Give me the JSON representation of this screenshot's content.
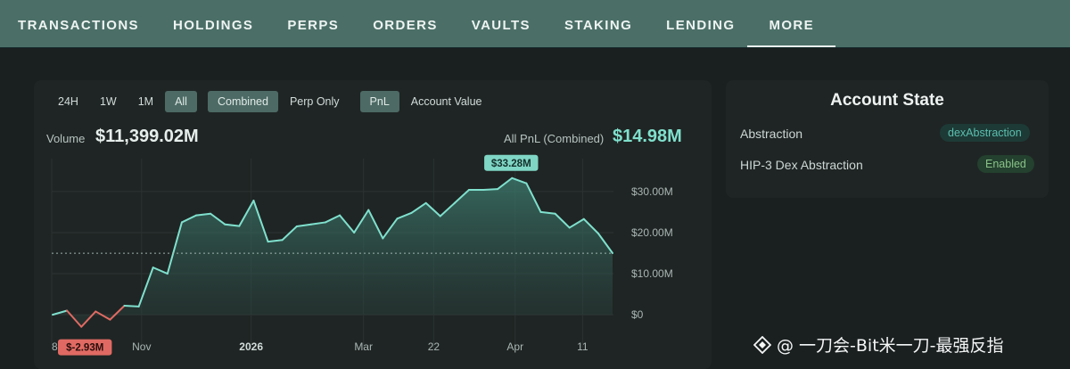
{
  "nav": {
    "tabs": [
      {
        "label": "TRANSACTIONS"
      },
      {
        "label": "HOLDINGS"
      },
      {
        "label": "PERPS"
      },
      {
        "label": "ORDERS"
      },
      {
        "label": "VAULTS"
      },
      {
        "label": "STAKING"
      },
      {
        "label": "LENDING"
      },
      {
        "label": "MORE"
      }
    ],
    "active": "MORE"
  },
  "controls": {
    "ranges": [
      "24H",
      "1W",
      "1M",
      "All"
    ],
    "range_selected": "All",
    "modes": [
      "Combined",
      "Perp Only"
    ],
    "mode_selected": "Combined",
    "metrics": [
      "PnL",
      "Account Value"
    ],
    "metric_selected": "PnL"
  },
  "summary": {
    "volume_label": "Volume",
    "volume_value": "$11,399.02M",
    "pnl_label": "All PnL (Combined)",
    "pnl_value": "$14.98M"
  },
  "account_state": {
    "title": "Account State",
    "rows": [
      {
        "label": "Abstraction",
        "value": "dexAbstraction"
      },
      {
        "label": "HIP-3 Dex Abstraction",
        "value": "Enabled"
      }
    ]
  },
  "watermark": {
    "text": "@ 一刀会-Bit米一刀-最强反指"
  },
  "colors": {
    "accent": "#7fe0cd",
    "negative": "#e06a63",
    "nav_bg": "#4b6f67",
    "panel_bg": "#1f2524"
  },
  "chart_data": {
    "type": "area",
    "series": [
      {
        "values": [
          0.0,
          1.0,
          -2.93,
          0.8,
          -1.2,
          2.2,
          2.0,
          11.5,
          10.0,
          22.5,
          24.2,
          24.6,
          22.0,
          21.6,
          27.8,
          17.8,
          18.2,
          21.5,
          22.0,
          22.5,
          24.2,
          20.0,
          25.5,
          18.6,
          23.4,
          24.8,
          27.2,
          24.0,
          27.2,
          30.4,
          30.4,
          30.6,
          33.28,
          32.0,
          25.0,
          24.6,
          21.2,
          23.3,
          19.8,
          15.0
        ]
      }
    ],
    "x_ticks": [
      "8",
      "Nov",
      "2026",
      "Mar",
      "22",
      "Apr",
      "11"
    ],
    "y_ticks": [
      "$0",
      "$10.00M",
      "$20.00M",
      "$30.00M"
    ],
    "ylim": [
      -8,
      38
    ],
    "reference_line": 14.98,
    "annotations": [
      {
        "label": "$33.28M",
        "value": 33.28,
        "kind": "max"
      },
      {
        "label": "$-2.93M",
        "value": -2.93,
        "kind": "min"
      }
    ],
    "grid": true
  }
}
